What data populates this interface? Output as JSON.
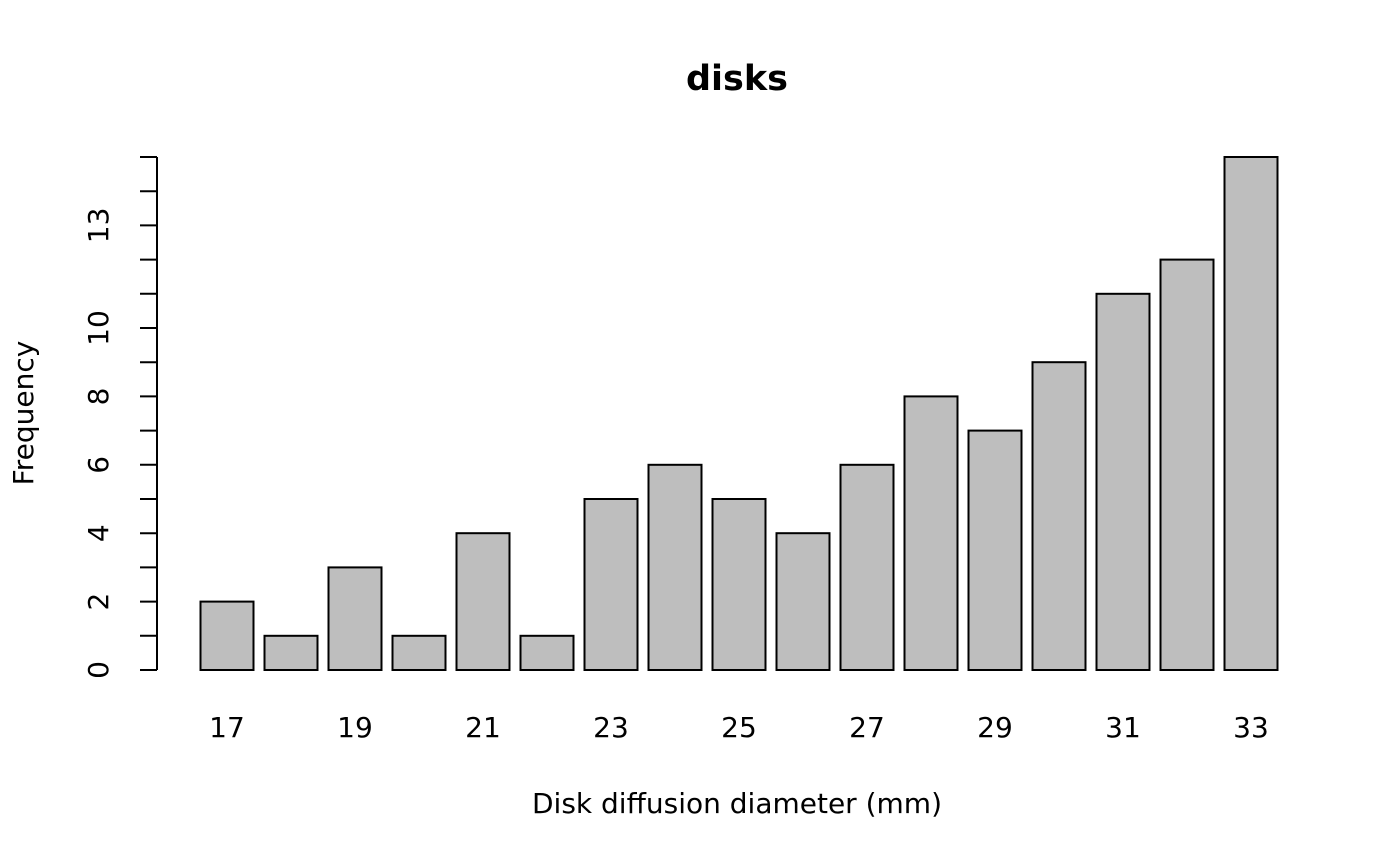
{
  "chart_data": {
    "type": "bar",
    "title": "disks",
    "xlabel": "Disk diffusion diameter (mm)",
    "ylabel": "Frequency",
    "categories": [
      "17",
      null,
      "19",
      null,
      "21",
      null,
      "23",
      null,
      "25",
      null,
      "27",
      null,
      "29",
      null,
      "31",
      null,
      "33"
    ],
    "values": [
      2,
      1,
      3,
      1,
      4,
      1,
      5,
      6,
      5,
      4,
      6,
      8,
      7,
      9,
      11,
      12,
      15
    ],
    "color": "#bebebe",
    "ylim": [
      0,
      15
    ],
    "yticks": [
      0,
      2,
      4,
      6,
      8,
      10,
      13
    ],
    "minor_yticks": [
      1,
      3,
      5,
      7,
      9,
      11,
      12,
      14,
      15
    ],
    "grid": false
  }
}
